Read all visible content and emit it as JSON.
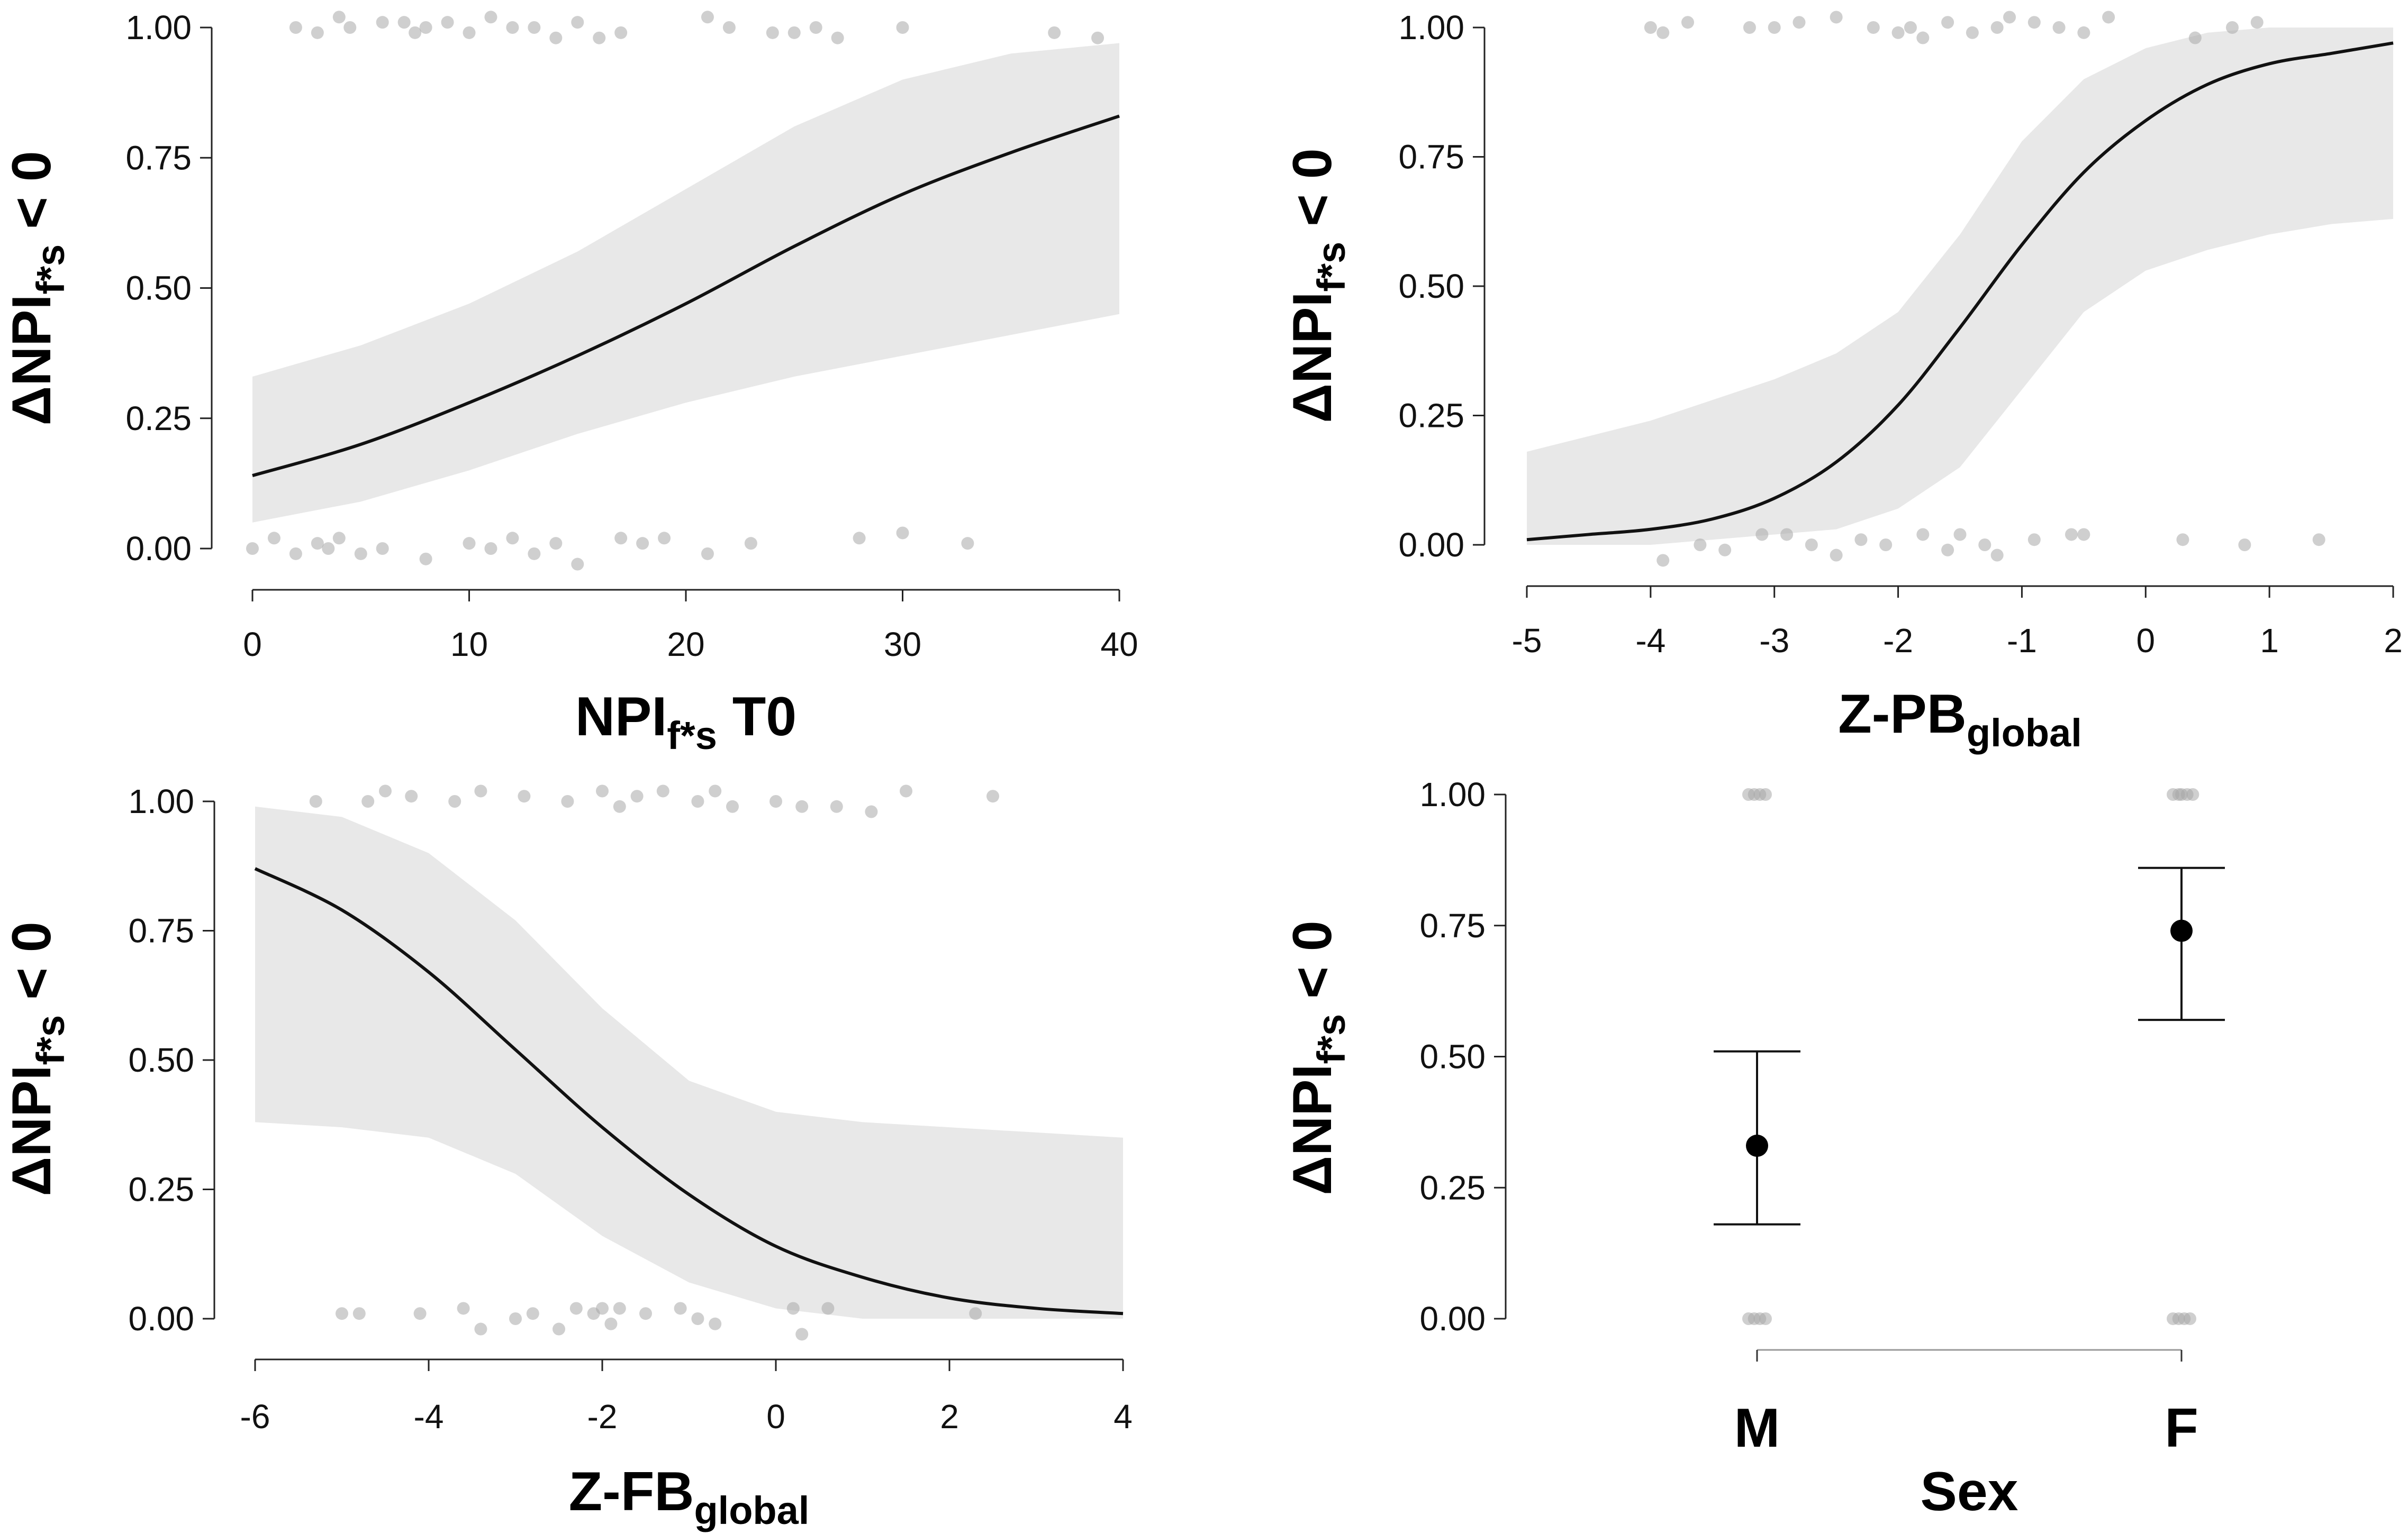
{
  "figure": {
    "panels_count": 4
  },
  "chart_data": [
    {
      "id": "p1",
      "type": "line",
      "title": "",
      "xlabel": {
        "main": "NPI",
        "sub": "f*s",
        "suffix": " T0"
      },
      "ylabel": {
        "main": "ΔNPI",
        "sub": "f*s",
        "suffix": " < 0"
      },
      "xlim": [
        0,
        40
      ],
      "ylim": [
        0,
        1
      ],
      "xticks": [
        0,
        10,
        20,
        30,
        40
      ],
      "xtick_labels": [
        "0",
        "10",
        "20",
        "30",
        "40"
      ],
      "yticks": [
        0,
        0.25,
        0.5,
        0.75,
        1
      ],
      "ytick_labels": [
        "0.00",
        "0.25",
        "0.50",
        "0.75",
        "1.00"
      ],
      "grid": false,
      "series": [
        {
          "name": "fit",
          "x": [
            0,
            5,
            10,
            15,
            20,
            25,
            30,
            35,
            40
          ],
          "y": [
            0.14,
            0.2,
            0.28,
            0.37,
            0.47,
            0.58,
            0.68,
            0.76,
            0.83
          ]
        },
        {
          "name": "ci_upper",
          "x": [
            0,
            5,
            10,
            15,
            20,
            25,
            30,
            35,
            40
          ],
          "y": [
            0.33,
            0.39,
            0.47,
            0.57,
            0.69,
            0.81,
            0.9,
            0.95,
            0.97
          ]
        },
        {
          "name": "ci_lower",
          "x": [
            0,
            5,
            10,
            15,
            20,
            25,
            30,
            35,
            40
          ],
          "y": [
            0.05,
            0.09,
            0.15,
            0.22,
            0.28,
            0.33,
            0.37,
            0.41,
            0.45
          ]
        }
      ],
      "points": {
        "top": {
          "x": [
            2,
            3,
            4,
            4.5,
            6,
            7,
            7.5,
            8,
            9,
            10,
            11,
            12,
            13,
            14,
            15,
            16,
            17,
            21,
            22,
            24,
            25,
            26,
            27,
            30,
            37,
            39
          ],
          "y": [
            1.0,
            0.99,
            1.02,
            1.0,
            1.01,
            1.01,
            0.99,
            1.0,
            1.01,
            0.99,
            1.02,
            1.0,
            1.0,
            0.98,
            1.01,
            0.98,
            0.99,
            1.02,
            1.0,
            0.99,
            0.99,
            1.0,
            0.98,
            1.0,
            0.99,
            0.98
          ]
        },
        "bottom": {
          "x": [
            0,
            1,
            2,
            3,
            3.5,
            4,
            5,
            6,
            8,
            10,
            11,
            12,
            13,
            14,
            15,
            17,
            18,
            19,
            21,
            23,
            28,
            30,
            33
          ],
          "y": [
            0.0,
            0.02,
            -0.01,
            0.01,
            0.0,
            0.02,
            -0.01,
            0.0,
            -0.02,
            0.01,
            0.0,
            0.02,
            -0.01,
            0.01,
            -0.03,
            0.02,
            0.01,
            0.02,
            -0.01,
            0.01,
            0.02,
            0.03,
            0.01
          ]
        }
      }
    },
    {
      "id": "p2",
      "type": "line",
      "title": "",
      "xlabel": {
        "main": "Z-PB",
        "sub": "global",
        "suffix": ""
      },
      "ylabel": {
        "main": "ΔNPI",
        "sub": "f*s",
        "suffix": " < 0"
      },
      "xlim": [
        -5,
        2
      ],
      "ylim": [
        0,
        1
      ],
      "xticks": [
        -5,
        -4,
        -3,
        -2,
        -1,
        0,
        1,
        2
      ],
      "xtick_labels": [
        "-5",
        "-4",
        "-3",
        "-2",
        "-1",
        "0",
        "1",
        "2"
      ],
      "yticks": [
        0,
        0.25,
        0.5,
        0.75,
        1
      ],
      "ytick_labels": [
        "0.00",
        "0.25",
        "0.50",
        "0.75",
        "1.00"
      ],
      "grid": false,
      "series": [
        {
          "name": "fit",
          "x": [
            -5,
            -4.5,
            -4,
            -3.5,
            -3,
            -2.5,
            -2,
            -1.5,
            -1,
            -0.5,
            0,
            0.5,
            1,
            1.5,
            2
          ],
          "y": [
            0.01,
            0.02,
            0.03,
            0.05,
            0.09,
            0.16,
            0.27,
            0.42,
            0.58,
            0.72,
            0.82,
            0.89,
            0.93,
            0.95,
            0.97
          ]
        },
        {
          "name": "ci_upper",
          "x": [
            -5,
            -4.5,
            -4,
            -3.5,
            -3,
            -2.5,
            -2,
            -1.5,
            -1,
            -0.5,
            0,
            0.5,
            1,
            1.5,
            2
          ],
          "y": [
            0.18,
            0.21,
            0.24,
            0.28,
            0.32,
            0.37,
            0.45,
            0.6,
            0.78,
            0.9,
            0.96,
            0.99,
            1.0,
            1.0,
            1.0
          ]
        },
        {
          "name": "ci_lower",
          "x": [
            -5,
            -4.5,
            -4,
            -3.5,
            -3,
            -2.5,
            -2,
            -1.5,
            -1,
            -0.5,
            0,
            0.5,
            1,
            1.5,
            2
          ],
          "y": [
            0.0,
            0.0,
            0.0,
            0.01,
            0.02,
            0.03,
            0.07,
            0.15,
            0.3,
            0.45,
            0.53,
            0.57,
            0.6,
            0.62,
            0.63
          ]
        },
        {
          "name": "dots",
          "x": [],
          "y": []
        }
      ],
      "points": {
        "top": {
          "x": [
            -4,
            -3.9,
            -3.7,
            -3.2,
            -3,
            -2.8,
            -2.5,
            -2.2,
            -2,
            -1.9,
            -1.8,
            -1.6,
            -1.4,
            -1.2,
            -1.1,
            -0.9,
            -0.7,
            -0.5,
            -0.3,
            0.4,
            0.7,
            0.9
          ],
          "y": [
            1.0,
            0.99,
            1.01,
            1.0,
            1.0,
            1.01,
            1.02,
            1.0,
            0.99,
            1.0,
            0.98,
            1.01,
            0.99,
            1.0,
            1.02,
            1.01,
            1.0,
            0.99,
            1.02,
            0.98,
            1.0,
            1.01
          ]
        },
        "bottom": {
          "x": [
            -3.9,
            -3.6,
            -3.4,
            -3.1,
            -2.9,
            -2.7,
            -2.5,
            -2.3,
            -2.1,
            -1.8,
            -1.6,
            -1.5,
            -1.3,
            -1.2,
            -0.9,
            -0.6,
            -0.5,
            0.3,
            0.8,
            1.4
          ],
          "y": [
            -0.03,
            0.0,
            -0.01,
            0.02,
            0.02,
            0.0,
            -0.02,
            0.01,
            0.0,
            0.02,
            -0.01,
            0.02,
            0.0,
            -0.02,
            0.01,
            0.02,
            0.02,
            0.01,
            0.0,
            0.01
          ]
        }
      }
    },
    {
      "id": "p3",
      "type": "line",
      "title": "",
      "xlabel": {
        "main": "Z-FB",
        "sub": "global",
        "suffix": ""
      },
      "ylabel": {
        "main": "ΔNPI",
        "sub": "f*s",
        "suffix": " < 0"
      },
      "xlim": [
        -6,
        4
      ],
      "ylim": [
        0,
        1
      ],
      "xticks": [
        -6,
        -4,
        -2,
        0,
        2,
        4
      ],
      "xtick_labels": [
        "-6",
        "-4",
        "-2",
        "0",
        "2",
        "4"
      ],
      "yticks": [
        0,
        0.25,
        0.5,
        0.75,
        1
      ],
      "ytick_labels": [
        "0.00",
        "0.25",
        "0.50",
        "0.75",
        "1.00"
      ],
      "grid": false,
      "series": [
        {
          "name": "fit",
          "x": [
            -6,
            -5,
            -4,
            -3,
            -2,
            -1,
            0,
            1,
            2,
            3,
            4
          ],
          "y": [
            0.87,
            0.79,
            0.67,
            0.52,
            0.37,
            0.24,
            0.14,
            0.08,
            0.04,
            0.02,
            0.01
          ]
        },
        {
          "name": "ci_upper",
          "x": [
            -6,
            -5,
            -4,
            -3,
            -2,
            -1,
            0,
            1,
            2,
            3,
            4
          ],
          "y": [
            0.99,
            0.97,
            0.9,
            0.77,
            0.6,
            0.46,
            0.4,
            0.38,
            0.37,
            0.36,
            0.35
          ]
        },
        {
          "name": "ci_lower",
          "x": [
            -6,
            -5,
            -4,
            -3,
            -2,
            -1,
            0,
            1,
            2,
            3,
            4
          ],
          "y": [
            0.38,
            0.37,
            0.35,
            0.28,
            0.16,
            0.07,
            0.02,
            0.0,
            0.0,
            0.0,
            0.0
          ]
        }
      ],
      "points": {
        "top": {
          "x": [
            -5.3,
            -4.7,
            -4.5,
            -4.2,
            -3.7,
            -3.4,
            -2.9,
            -2.4,
            -2.0,
            -1.8,
            -1.6,
            -1.3,
            -0.9,
            -0.7,
            -0.5,
            0.0,
            0.3,
            0.7,
            1.1,
            1.5,
            2.5
          ],
          "y": [
            1.0,
            1.0,
            1.02,
            1.01,
            1.0,
            1.02,
            1.01,
            1.0,
            1.02,
            0.99,
            1.01,
            1.02,
            1.0,
            1.02,
            0.99,
            1.0,
            0.99,
            0.99,
            0.98,
            1.02,
            1.01
          ]
        },
        "bottom": {
          "x": [
            -5.0,
            -4.8,
            -4.1,
            -3.6,
            -3.4,
            -3.0,
            -2.8,
            -2.5,
            -2.3,
            -2.1,
            -2.0,
            -1.9,
            -1.8,
            -1.5,
            -1.1,
            -0.9,
            -0.7,
            0.2,
            0.3,
            0.6,
            2.3
          ],
          "y": [
            0.01,
            0.01,
            0.01,
            0.02,
            -0.02,
            0.0,
            0.01,
            -0.02,
            0.02,
            0.01,
            0.02,
            -0.01,
            0.02,
            0.01,
            0.02,
            0.0,
            -0.01,
            0.02,
            -0.03,
            0.02,
            0.01
          ]
        }
      }
    },
    {
      "id": "p4",
      "type": "scatter",
      "title": "",
      "xlabel": {
        "main": "Sex",
        "sub": "",
        "suffix": ""
      },
      "ylabel": {
        "main": "ΔNPI",
        "sub": "f*s",
        "suffix": " < 0"
      },
      "categories": [
        "M",
        "F"
      ],
      "ylim": [
        0,
        1
      ],
      "yticks": [
        0,
        0.25,
        0.5,
        0.75,
        1
      ],
      "ytick_labels": [
        "0.00",
        "0.25",
        "0.50",
        "0.75",
        "1.00"
      ],
      "grid": false,
      "series": [
        {
          "name": "estimate",
          "values": [
            0.33,
            0.74
          ],
          "lower": [
            0.18,
            0.57
          ],
          "upper": [
            0.51,
            0.86
          ]
        }
      ],
      "points": {
        "top": {
          "cat": [
            0,
            0,
            0,
            0,
            1,
            1,
            1,
            1,
            1
          ],
          "offset": [
            -0.03,
            -0.01,
            0.01,
            0.03,
            -0.03,
            -0.01,
            0.0,
            0.02,
            0.04
          ],
          "y": [
            1.0,
            1.0,
            1.0,
            1.0,
            1.0,
            1.0,
            1.0,
            1.0,
            1.0
          ]
        },
        "bottom": {
          "cat": [
            0,
            0,
            0,
            0,
            1,
            1,
            1,
            1
          ],
          "offset": [
            -0.03,
            -0.01,
            0.01,
            0.03,
            -0.03,
            -0.01,
            0.01,
            0.03
          ],
          "y": [
            0.0,
            0.0,
            0.0,
            0.0,
            0.0,
            0.0,
            0.0,
            0.0
          ]
        }
      }
    }
  ]
}
